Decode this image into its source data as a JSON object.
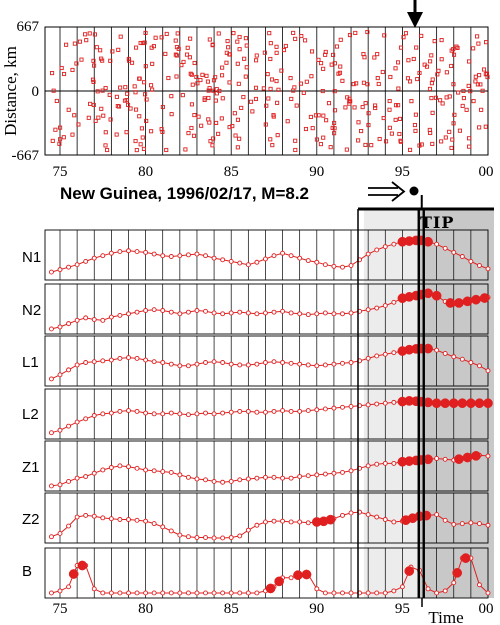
{
  "colors": {
    "data": "#e02020",
    "tip_light": "#ececec",
    "tip_dark": "#c8c8c8",
    "axis": "#000000"
  },
  "top_panel": {
    "ylabel": "Distance, km",
    "ytick_labels": [
      "667",
      "0",
      "-667"
    ],
    "ylim": [
      -667,
      667
    ],
    "xlim": [
      1974.5,
      2000
    ],
    "xtick_labels": [
      "75",
      "80",
      "85",
      "90",
      "95",
      "00"
    ],
    "points_per_year": 16
  },
  "event": {
    "label": "New Guinea, 1996/02/17, M=8.2",
    "time": 1996.13
  },
  "tip_label": "TIP",
  "xlabel": "Time",
  "bottom_xtick_labels": [
    "75",
    "80",
    "85",
    "90",
    "95",
    "00"
  ],
  "chart_data": {
    "type": "line",
    "x": [
      1974.5,
      1975,
      1975.5,
      1976,
      1976.5,
      1977,
      1977.5,
      1978,
      1978.5,
      1979,
      1979.5,
      1980,
      1980.5,
      1981,
      1981.5,
      1982,
      1982.5,
      1983,
      1983.5,
      1984,
      1984.5,
      1985,
      1985.5,
      1986,
      1986.5,
      1987,
      1987.5,
      1988,
      1988.5,
      1989,
      1989.5,
      1990,
      1990.5,
      1991,
      1991.5,
      1992,
      1992.5,
      1993,
      1993.5,
      1994,
      1994.5,
      1995,
      1995.5,
      1996,
      1996.5,
      1997,
      1997.5,
      1998,
      1998.5,
      1999,
      1999.5,
      2000
    ],
    "tip_start": 1992.75,
    "tip_dark_start": 1996.0,
    "xlim": [
      1974.5,
      2000
    ],
    "series": [
      {
        "name": "N1",
        "values": [
          0.12,
          0.18,
          0.24,
          0.3,
          0.38,
          0.46,
          0.52,
          0.58,
          0.62,
          0.64,
          0.62,
          0.6,
          0.56,
          0.52,
          0.5,
          0.52,
          0.54,
          0.56,
          0.52,
          0.46,
          0.42,
          0.38,
          0.34,
          0.3,
          0.36,
          0.44,
          0.52,
          0.58,
          0.52,
          0.46,
          0.4,
          0.36,
          0.3,
          0.26,
          0.24,
          0.28,
          0.42,
          0.56,
          0.66,
          0.74,
          0.8,
          0.86,
          0.88,
          0.9,
          0.86,
          0.8,
          0.7,
          0.6,
          0.5,
          0.38,
          0.28,
          0.2
        ],
        "alarms": [
          1995.0,
          1995.4,
          1995.8,
          1996.1,
          1996.5
        ]
      },
      {
        "name": "N2",
        "values": [
          0.05,
          0.1,
          0.18,
          0.26,
          0.32,
          0.28,
          0.26,
          0.34,
          0.38,
          0.42,
          0.46,
          0.5,
          0.52,
          0.5,
          0.46,
          0.42,
          0.46,
          0.5,
          0.48,
          0.44,
          0.42,
          0.44,
          0.46,
          0.44,
          0.42,
          0.44,
          0.46,
          0.48,
          0.44,
          0.42,
          0.4,
          0.42,
          0.44,
          0.42,
          0.42,
          0.44,
          0.48,
          0.52,
          0.56,
          0.62,
          0.7,
          0.8,
          0.84,
          0.88,
          0.92,
          0.86,
          0.72,
          0.66,
          0.7,
          0.74,
          0.78,
          0.82
        ],
        "alarms": [
          1995.0,
          1995.4,
          1995.8,
          1996.1,
          1996.5,
          1997.0,
          1997.8,
          1998.3,
          1998.8,
          1999.3,
          1999.8
        ]
      },
      {
        "name": "L1",
        "values": [
          0.1,
          0.2,
          0.32,
          0.44,
          0.5,
          0.52,
          0.54,
          0.56,
          0.6,
          0.62,
          0.6,
          0.56,
          0.52,
          0.5,
          0.46,
          0.42,
          0.42,
          0.46,
          0.5,
          0.52,
          0.5,
          0.46,
          0.44,
          0.44,
          0.46,
          0.5,
          0.52,
          0.5,
          0.48,
          0.46,
          0.44,
          0.42,
          0.44,
          0.46,
          0.48,
          0.5,
          0.54,
          0.6,
          0.66,
          0.7,
          0.74,
          0.78,
          0.82,
          0.84,
          0.84,
          0.8,
          0.72,
          0.64,
          0.58,
          0.5,
          0.42,
          0.3
        ],
        "alarms": [
          1995.0,
          1995.4,
          1995.8,
          1996.1,
          1996.5
        ]
      },
      {
        "name": "L2",
        "values": [
          0.08,
          0.14,
          0.24,
          0.34,
          0.42,
          0.5,
          0.54,
          0.56,
          0.6,
          0.62,
          0.6,
          0.56,
          0.54,
          0.54,
          0.56,
          0.54,
          0.52,
          0.54,
          0.56,
          0.54,
          0.56,
          0.58,
          0.6,
          0.6,
          0.58,
          0.58,
          0.6,
          0.62,
          0.6,
          0.6,
          0.62,
          0.64,
          0.66,
          0.68,
          0.7,
          0.72,
          0.74,
          0.76,
          0.78,
          0.8,
          0.82,
          0.84,
          0.86,
          0.84,
          0.82,
          0.8,
          0.8,
          0.8,
          0.8,
          0.8,
          0.8,
          0.8
        ],
        "alarms": [
          1995.0,
          1995.4,
          1995.8,
          1996.1,
          1996.5,
          1997.0,
          1997.5,
          1998.0,
          1998.5,
          1999.0,
          1999.5,
          2000.0
        ]
      },
      {
        "name": "Z1",
        "values": [
          0.05,
          0.08,
          0.16,
          0.24,
          0.28,
          0.36,
          0.44,
          0.5,
          0.54,
          0.52,
          0.48,
          0.44,
          0.42,
          0.4,
          0.38,
          0.32,
          0.26,
          0.22,
          0.2,
          0.16,
          0.14,
          0.16,
          0.2,
          0.22,
          0.24,
          0.26,
          0.26,
          0.24,
          0.24,
          0.28,
          0.3,
          0.32,
          0.34,
          0.36,
          0.38,
          0.42,
          0.48,
          0.54,
          0.58,
          0.6,
          0.6,
          0.64,
          0.66,
          0.68,
          0.7,
          0.72,
          0.7,
          0.68,
          0.72,
          0.76,
          0.8,
          0.78
        ],
        "alarms": [
          1995.0,
          1995.4,
          1995.8,
          1996.1,
          1996.5,
          1998.3,
          1998.8,
          1999.3
        ]
      },
      {
        "name": "Z2",
        "values": [
          0.08,
          0.16,
          0.34,
          0.56,
          0.6,
          0.58,
          0.54,
          0.52,
          0.5,
          0.5,
          0.48,
          0.46,
          0.4,
          0.32,
          0.22,
          0.12,
          0.08,
          0.06,
          0.06,
          0.05,
          0.05,
          0.06,
          0.1,
          0.24,
          0.36,
          0.44,
          0.46,
          0.46,
          0.44,
          0.44,
          0.42,
          0.44,
          0.46,
          0.52,
          0.6,
          0.66,
          0.68,
          0.62,
          0.56,
          0.5,
          0.44,
          0.46,
          0.52,
          0.58,
          0.6,
          0.62,
          0.48,
          0.38,
          0.4,
          0.42,
          0.4,
          0.36
        ],
        "alarms": [
          1990.0,
          1990.4,
          1990.8,
          1995.2,
          1995.6,
          1996.0,
          1996.4
        ]
      },
      {
        "name": "B",
        "values": [
          0.05,
          0.1,
          0.2,
          0.72,
          0.72,
          0.15,
          0.05,
          0.05,
          0.05,
          0.05,
          0.05,
          0.05,
          0.05,
          0.05,
          0.05,
          0.05,
          0.05,
          0.05,
          0.05,
          0.05,
          0.05,
          0.05,
          0.05,
          0.05,
          0.05,
          0.1,
          0.2,
          0.42,
          0.42,
          0.5,
          0.5,
          0.15,
          0.05,
          0.05,
          0.05,
          0.05,
          0.05,
          0.05,
          0.05,
          0.05,
          0.1,
          0.2,
          0.68,
          0.6,
          0.15,
          0.05,
          0.1,
          0.3,
          0.9,
          0.9,
          0.25,
          0.05
        ],
        "alarms": [
          1975.8,
          1976.3,
          1987.3,
          1987.8,
          1988.9,
          1989.4,
          1995.4,
          1998.2,
          1998.7
        ]
      }
    ]
  }
}
